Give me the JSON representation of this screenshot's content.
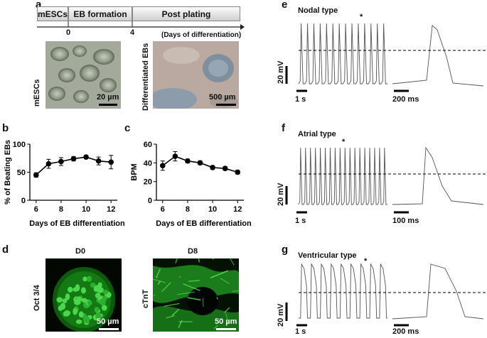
{
  "panels": {
    "a": "a",
    "b": "b",
    "c": "c",
    "d": "d",
    "e": "e",
    "f": "f",
    "g": "g"
  },
  "timeline": {
    "stages": [
      "mESCs",
      "EB formation",
      "Post plating"
    ],
    "tick_labels": [
      "0",
      "4"
    ],
    "axis_label": "(Days of differentiation)"
  },
  "photos_a": {
    "left_label": "mESCs",
    "left_scale": "20 µm",
    "right_label": "Differentiated EBs",
    "right_scale": "500 µm"
  },
  "photos_d": {
    "left_title": "D0",
    "left_label": "Oct 3/4",
    "left_scale": "50 µm",
    "right_title": "D8",
    "right_label": "cTnT",
    "right_scale": "50 µm"
  },
  "traces": {
    "e_title": "Nodal type",
    "f_title": "Atrial type",
    "g_title": "Ventricular type",
    "asterisk": "*",
    "voltage_scale": "20 mV",
    "e_time_left": "1 s",
    "e_time_right": "200 ms",
    "f_time_left": "1 s",
    "f_time_right": "100 ms",
    "g_time_left": "1 s",
    "g_time_right": "200 ms"
  },
  "chart_data": [
    {
      "type": "line",
      "panel": "b",
      "x": [
        6,
        7,
        8,
        9,
        10,
        11,
        12
      ],
      "series": [
        {
          "values": [
            45,
            65,
            69,
            74,
            77,
            70,
            68
          ],
          "errors": [
            4,
            8,
            7,
            4,
            3,
            7,
            12
          ]
        }
      ],
      "xticks": [
        "6",
        "8",
        "10",
        "12"
      ],
      "yticks": [
        "0",
        "50",
        "100"
      ],
      "xlabel": "Days of EB differentiation",
      "ylabel": "% of Beating EBs",
      "xlim": [
        5.5,
        12.5
      ],
      "ylim": [
        0,
        100
      ]
    },
    {
      "type": "line",
      "panel": "c",
      "x": [
        6,
        7,
        8,
        9,
        10,
        11,
        12
      ],
      "series": [
        {
          "values": [
            37,
            47,
            42,
            40,
            35,
            34,
            30
          ],
          "errors": [
            5,
            5,
            2,
            2,
            2,
            2,
            2
          ]
        }
      ],
      "xticks": [
        "6",
        "8",
        "10",
        "12"
      ],
      "yticks": [
        "0",
        "20",
        "40",
        "60"
      ],
      "xlabel": "Days of EB differentiation",
      "ylabel": "BPM",
      "xlim": [
        5.5,
        12.5
      ],
      "ylim": [
        0,
        60
      ]
    }
  ]
}
